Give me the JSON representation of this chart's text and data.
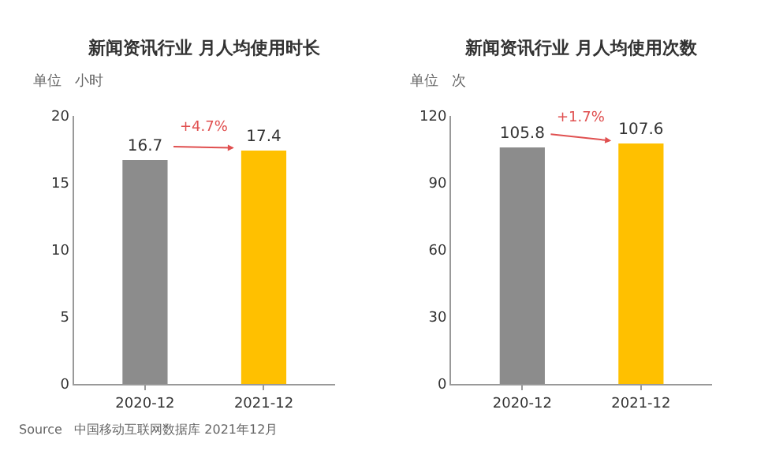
{
  "chart_data": [
    {
      "type": "bar",
      "title": "新闻资讯行业 月人均使用时长",
      "ylabel": "单位   小时",
      "categories": [
        "2020-12",
        "2021-12"
      ],
      "values": [
        16.7,
        17.4
      ],
      "colors": [
        "#8c8c8c",
        "#ffc000"
      ],
      "ylim": [
        0,
        20
      ],
      "yticks": [
        0,
        5,
        10,
        15,
        20
      ],
      "data_labels": true,
      "annotations": [
        "+4.7%",
        "Source   中国移动互联网数据库 2021年12月"
      ]
    },
    {
      "type": "bar",
      "title": "新闻资讯行业 月人均使用次数",
      "ylabel": "单位   次",
      "categories": [
        "2020-12",
        "2021-12"
      ],
      "values": [
        105.8,
        107.6
      ],
      "colors": [
        "#8c8c8c",
        "#ffc000"
      ],
      "ylim": [
        0,
        120
      ],
      "yticks": [
        0,
        30,
        60,
        90,
        120
      ],
      "data_labels": true,
      "annotations": [
        "+1.7%"
      ]
    }
  ]
}
